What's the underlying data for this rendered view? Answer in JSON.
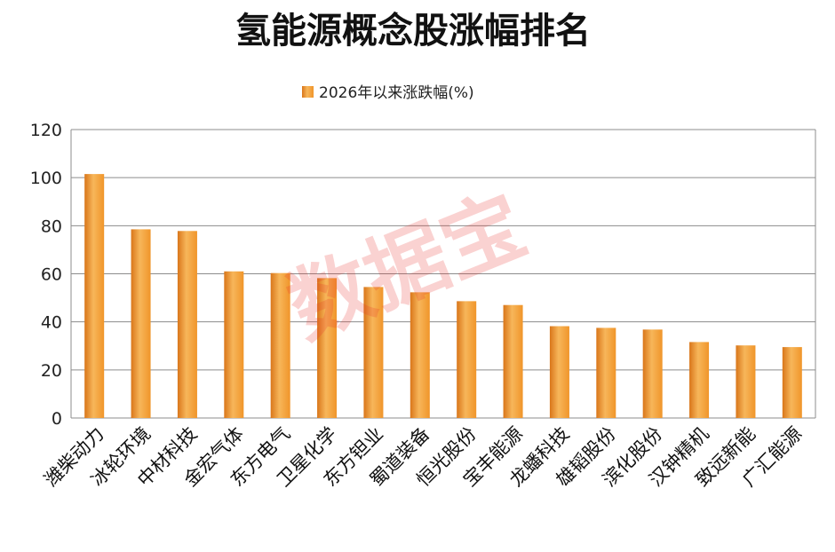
{
  "chart_data": {
    "type": "bar",
    "title": "氢能源概念股涨幅排名",
    "legend": {
      "label": "2026年以来涨跌幅(%)",
      "placement": "top-center"
    },
    "categories": [
      "潍柴动力",
      "冰轮环境",
      "中材科技",
      "金宏气体",
      "东方电气",
      "卫星化学",
      "东方钽业",
      "蜀道装备",
      "恒光股份",
      "宝丰能源",
      "龙蟠科技",
      "雄韬股份",
      "滨化股份",
      "汉钟精机",
      "致远新能",
      "广汇能源"
    ],
    "series": [
      {
        "name": "2026年以来涨跌幅(%)",
        "values": [
          101.5,
          78.5,
          77.8,
          61,
          60.3,
          58.2,
          54.5,
          52.3,
          48.6,
          47,
          38.2,
          37.5,
          36.8,
          31.6,
          30.2,
          29.5
        ]
      }
    ],
    "ylim": [
      0,
      120
    ],
    "yticks": [
      0,
      20,
      40,
      60,
      80,
      100,
      120
    ],
    "grid": true,
    "colors": {
      "bar": "#f0952a",
      "bar_light": "#f7b65a",
      "bar_dark": "#d9761a",
      "grid": "#8c8c8c"
    }
  },
  "watermark": "数据宝"
}
